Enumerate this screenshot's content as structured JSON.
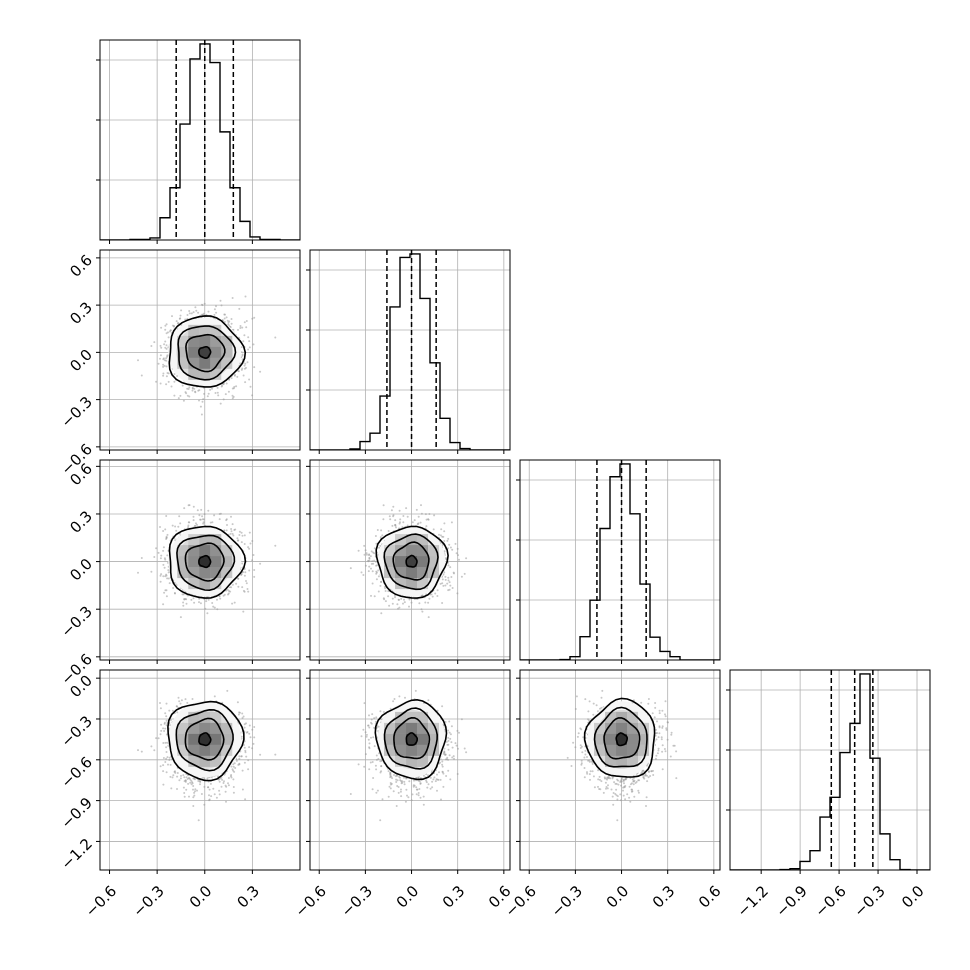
{
  "chart_data": {
    "type": "scatter",
    "subtype": "corner-plot",
    "title": "",
    "grid": true,
    "legend": "none",
    "quantile_line_style": "dashed",
    "colors": {
      "hist": "#000000",
      "points": "#9a9a9a",
      "density": "#000000",
      "grid": "#b0b0b0"
    },
    "parameters": [
      {
        "name": "",
        "mean": 0.0,
        "std": 0.115,
        "quantiles": [
          -0.18,
          0.0,
          0.18
        ],
        "xlim": [
          -0.66,
          0.6
        ],
        "ylim": null,
        "xticks": [],
        "yticks": [],
        "hist_ylim": [
          0,
          1.02
        ]
      },
      {
        "name": "",
        "mean": 0.0,
        "std": 0.11,
        "quantiles": [
          -0.16,
          0.0,
          0.16
        ],
        "xlim": [
          -0.66,
          0.64
        ],
        "ylim": [
          -0.62,
          0.65
        ],
        "xticks": [],
        "yticks": [
          -0.6,
          -0.3,
          0.0,
          0.3,
          0.6
        ],
        "ytick_labels": [
          "−0.6",
          "−0.3",
          "0.0",
          "0.3",
          "0.6"
        ],
        "hist_ylim": [
          0,
          1.02
        ]
      },
      {
        "name": "",
        "mean": 0.0,
        "std": 0.11,
        "quantiles": [
          -0.16,
          0.0,
          0.16
        ],
        "xlim": [
          -0.66,
          0.64
        ],
        "ylim": [
          -0.62,
          0.64
        ],
        "xticks": [],
        "yticks": [
          -0.6,
          -0.3,
          0.0,
          0.3,
          0.6
        ],
        "ytick_labels": [
          "−0.6",
          "−0.3",
          "0.0",
          "0.3",
          "0.6"
        ],
        "hist_ylim": [
          0,
          1.02
        ]
      },
      {
        "name": "",
        "mean": -0.45,
        "std": 0.14,
        "quantiles": [
          -0.66,
          -0.48,
          -0.34
        ],
        "xlim": [
          -1.44,
          0.1
        ],
        "ylim": [
          -1.41,
          0.06
        ],
        "xticks": [
          -1.2,
          -0.9,
          -0.6,
          -0.3,
          0.0
        ],
        "xtick_labels": [
          "−1.2",
          "−0.9",
          "−0.6",
          "−0.3",
          "0.0"
        ],
        "yticks": [
          -1.2,
          -0.9,
          -0.6,
          -0.3,
          0.0
        ],
        "ytick_labels": [
          "−1.2",
          "−0.9",
          "−0.6",
          "−0.3",
          "0.0"
        ],
        "hist_ylim": [
          0,
          1.02
        ]
      }
    ],
    "bottom_xticks": [
      {
        "ticks": [
          -0.6,
          -0.3,
          0.0,
          0.3
        ],
        "labels": [
          "−0.6",
          "−0.3",
          "0.0",
          "0.3"
        ]
      },
      {
        "ticks": [
          -0.6,
          -0.3,
          0.0,
          0.3,
          0.6
        ],
        "labels": [
          "−0.6",
          "−0.3",
          "0.0",
          "0.3",
          "0.6"
        ]
      },
      {
        "ticks": [
          -0.6,
          -0.3,
          0.0,
          0.3,
          0.6
        ],
        "labels": [
          "−0.6",
          "−0.3",
          "0.0",
          "0.3",
          "0.6"
        ]
      },
      {
        "ticks": [
          -1.2,
          -0.9,
          -0.6,
          -0.3,
          0.0
        ],
        "labels": [
          "−1.2",
          "−0.9",
          "−0.6",
          "−0.3",
          "0.0"
        ]
      }
    ],
    "contour_levels": [
      0.25,
      0.5,
      0.75,
      0.92
    ]
  }
}
